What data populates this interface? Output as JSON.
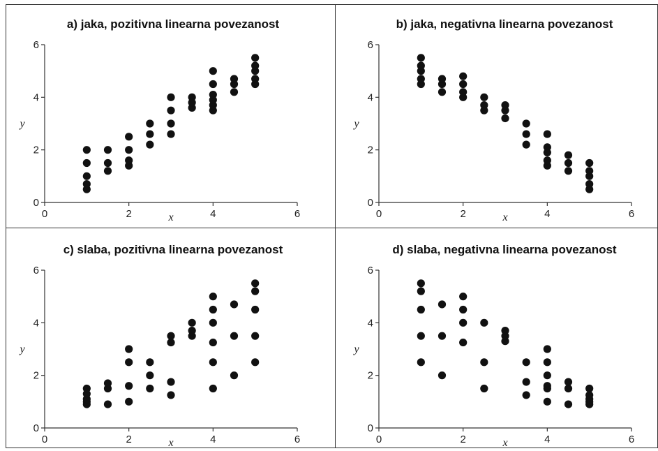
{
  "chart_data": [
    {
      "type": "scatter",
      "title": "a) jaka, pozitivna linearna povezanost",
      "xlabel": "x",
      "ylabel": "y",
      "xlim": [
        0,
        6
      ],
      "ylim": [
        0,
        6
      ],
      "xticks": [
        "0",
        "2",
        "4",
        "6"
      ],
      "yticks": [
        "0",
        "2",
        "4",
        "6"
      ],
      "points": [
        [
          1,
          0.5
        ],
        [
          1,
          0.7
        ],
        [
          1,
          1.0
        ],
        [
          1,
          1.5
        ],
        [
          1,
          2.0
        ],
        [
          1.5,
          1.2
        ],
        [
          1.5,
          1.5
        ],
        [
          1.5,
          2.0
        ],
        [
          2,
          1.4
        ],
        [
          2,
          1.6
        ],
        [
          2,
          2.0
        ],
        [
          2,
          2.5
        ],
        [
          2.5,
          2.2
        ],
        [
          2.5,
          2.6
        ],
        [
          2.5,
          3.0
        ],
        [
          3,
          2.6
        ],
        [
          3,
          3.0
        ],
        [
          3,
          3.5
        ],
        [
          3,
          4.0
        ],
        [
          3.5,
          3.6
        ],
        [
          3.5,
          3.8
        ],
        [
          3.5,
          4.0
        ],
        [
          4,
          3.5
        ],
        [
          4,
          3.7
        ],
        [
          4,
          3.9
        ],
        [
          4,
          4.1
        ],
        [
          4,
          4.5
        ],
        [
          4,
          5.0
        ],
        [
          4.5,
          4.2
        ],
        [
          4.5,
          4.5
        ],
        [
          4.5,
          4.7
        ],
        [
          5,
          4.5
        ],
        [
          5,
          4.7
        ],
        [
          5,
          5.0
        ],
        [
          5,
          5.2
        ],
        [
          5,
          5.5
        ]
      ]
    },
    {
      "type": "scatter",
      "title": "b) jaka, negativna linearna povezanost",
      "xlabel": "x",
      "ylabel": "y",
      "xlim": [
        0,
        6
      ],
      "ylim": [
        0,
        6
      ],
      "xticks": [
        "0",
        "2",
        "4",
        "6"
      ],
      "yticks": [
        "0",
        "2",
        "4",
        "6"
      ],
      "points": [
        [
          1,
          4.5
        ],
        [
          1,
          4.7
        ],
        [
          1,
          5.0
        ],
        [
          1,
          5.2
        ],
        [
          1,
          5.5
        ],
        [
          1.5,
          4.2
        ],
        [
          1.5,
          4.5
        ],
        [
          1.5,
          4.7
        ],
        [
          2,
          4.0
        ],
        [
          2,
          4.2
        ],
        [
          2,
          4.5
        ],
        [
          2,
          4.8
        ],
        [
          2.5,
          3.5
        ],
        [
          2.5,
          3.7
        ],
        [
          2.5,
          4.0
        ],
        [
          3,
          3.2
        ],
        [
          3,
          3.5
        ],
        [
          3,
          3.7
        ],
        [
          3.5,
          2.2
        ],
        [
          3.5,
          2.6
        ],
        [
          3.5,
          3.0
        ],
        [
          4,
          1.4
        ],
        [
          4,
          1.6
        ],
        [
          4,
          1.9
        ],
        [
          4,
          2.1
        ],
        [
          4,
          2.6
        ],
        [
          4.5,
          1.2
        ],
        [
          4.5,
          1.5
        ],
        [
          4.5,
          1.8
        ],
        [
          5,
          0.5
        ],
        [
          5,
          0.7
        ],
        [
          5,
          1.0
        ],
        [
          5,
          1.2
        ],
        [
          5,
          1.5
        ]
      ]
    },
    {
      "type": "scatter",
      "title": "c) slaba, pozitivna linearna povezanost",
      "xlabel": "x",
      "ylabel": "y",
      "xlim": [
        0,
        6
      ],
      "ylim": [
        0,
        6
      ],
      "xticks": [
        "0",
        "2",
        "4",
        "6"
      ],
      "yticks": [
        "0",
        "2",
        "4",
        "6"
      ],
      "points": [
        [
          1,
          0.9
        ],
        [
          1,
          1.0
        ],
        [
          1,
          1.1
        ],
        [
          1,
          1.3
        ],
        [
          1,
          1.5
        ],
        [
          1.5,
          0.9
        ],
        [
          1.5,
          1.5
        ],
        [
          1.5,
          1.7
        ],
        [
          2,
          1.0
        ],
        [
          2,
          1.6
        ],
        [
          2,
          2.5
        ],
        [
          2,
          3.0
        ],
        [
          2.5,
          1.5
        ],
        [
          2.5,
          2.0
        ],
        [
          2.5,
          2.5
        ],
        [
          3,
          1.25
        ],
        [
          3,
          1.75
        ],
        [
          3,
          3.25
        ],
        [
          3,
          3.5
        ],
        [
          3.5,
          3.5
        ],
        [
          3.5,
          3.7
        ],
        [
          3.5,
          4.0
        ],
        [
          4,
          1.5
        ],
        [
          4,
          2.5
        ],
        [
          4,
          3.25
        ],
        [
          4,
          4.0
        ],
        [
          4,
          4.5
        ],
        [
          4,
          5.0
        ],
        [
          4.5,
          2.0
        ],
        [
          4.5,
          3.5
        ],
        [
          4.5,
          4.7
        ],
        [
          5,
          2.5
        ],
        [
          5,
          3.5
        ],
        [
          5,
          4.5
        ],
        [
          5,
          5.2
        ],
        [
          5,
          5.5
        ]
      ]
    },
    {
      "type": "scatter",
      "title": "d) slaba, negativna linearna povezanost",
      "xlabel": "x",
      "ylabel": "y",
      "xlim": [
        0,
        6
      ],
      "ylim": [
        0,
        6
      ],
      "xticks": [
        "0",
        "2",
        "4",
        "6"
      ],
      "yticks": [
        "0",
        "2",
        "4",
        "6"
      ],
      "points": [
        [
          1,
          2.5
        ],
        [
          1,
          3.5
        ],
        [
          1,
          4.5
        ],
        [
          1,
          5.2
        ],
        [
          1,
          5.5
        ],
        [
          1.5,
          2.0
        ],
        [
          1.5,
          3.5
        ],
        [
          1.5,
          4.7
        ],
        [
          2,
          3.25
        ],
        [
          2,
          4.0
        ],
        [
          2,
          4.5
        ],
        [
          2,
          5.0
        ],
        [
          2.5,
          1.5
        ],
        [
          2.5,
          2.5
        ],
        [
          2.5,
          4.0
        ],
        [
          3,
          3.3
        ],
        [
          3,
          3.5
        ],
        [
          3,
          3.7
        ],
        [
          3.5,
          1.25
        ],
        [
          3.5,
          1.75
        ],
        [
          3.5,
          2.5
        ],
        [
          4,
          1.0
        ],
        [
          4,
          1.5
        ],
        [
          4,
          1.6
        ],
        [
          4,
          2.0
        ],
        [
          4,
          2.5
        ],
        [
          4,
          3.0
        ],
        [
          4.5,
          0.9
        ],
        [
          4.5,
          1.5
        ],
        [
          4.5,
          1.75
        ],
        [
          5,
          0.9
        ],
        [
          5,
          1.0
        ],
        [
          5,
          1.1
        ],
        [
          5,
          1.25
        ],
        [
          5,
          1.5
        ]
      ]
    }
  ]
}
